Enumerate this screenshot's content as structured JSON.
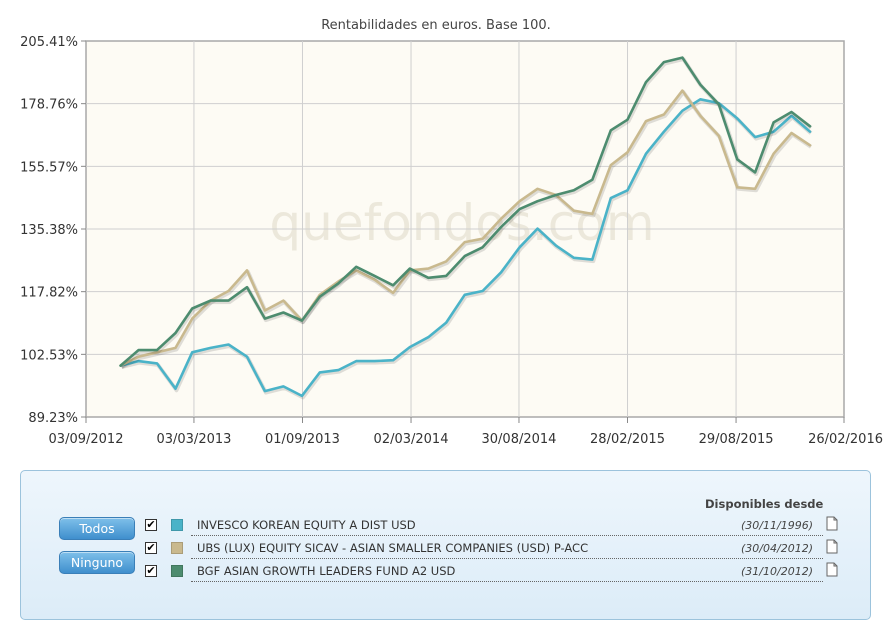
{
  "chart_data": {
    "type": "line",
    "title": "Rentabilidades en euros. Base 100.",
    "watermark": "quefondos.com",
    "y_ticks": [
      "89.23%",
      "102.53%",
      "117.82%",
      "135.38%",
      "155.57%",
      "178.76%",
      "205.41%"
    ],
    "x_ticks": [
      "03/09/2012",
      "03/03/2013",
      "01/09/2013",
      "02/03/2014",
      "30/08/2014",
      "28/02/2015",
      "29/08/2015",
      "26/02/2016"
    ],
    "y_scale": "log",
    "x_range": [
      "2012-09-03",
      "2016-02-26"
    ],
    "grid": true,
    "series": [
      {
        "name": "INVESCO KOREAN EQUITY A DIST USD",
        "color": "#4ab3c8",
        "points": [
          [
            "2012-10-31",
            100.0
          ],
          [
            "2012-11-30",
            101.0
          ],
          [
            "2012-12-31",
            100.5
          ],
          [
            "2013-01-31",
            95.0
          ],
          [
            "2013-02-28",
            103.0
          ],
          [
            "2013-03-31",
            104.0
          ],
          [
            "2013-04-30",
            104.8
          ],
          [
            "2013-05-31",
            102.0
          ],
          [
            "2013-06-30",
            94.5
          ],
          [
            "2013-07-31",
            95.5
          ],
          [
            "2013-08-31",
            93.5
          ],
          [
            "2013-09-30",
            98.5
          ],
          [
            "2013-10-31",
            99.0
          ],
          [
            "2013-11-30",
            101.0
          ],
          [
            "2013-12-31",
            101.0
          ],
          [
            "2014-01-31",
            101.2
          ],
          [
            "2014-02-28",
            104.2
          ],
          [
            "2014-03-31",
            106.5
          ],
          [
            "2014-04-30",
            110.0
          ],
          [
            "2014-05-31",
            117.0
          ],
          [
            "2014-06-30",
            118.0
          ],
          [
            "2014-07-31",
            123.0
          ],
          [
            "2014-08-31",
            130.0
          ],
          [
            "2014-09-30",
            135.5
          ],
          [
            "2014-10-31",
            130.5
          ],
          [
            "2014-11-30",
            127.0
          ],
          [
            "2014-12-31",
            126.5
          ],
          [
            "2015-01-31",
            145.0
          ],
          [
            "2015-02-28",
            147.5
          ],
          [
            "2015-03-31",
            160.0
          ],
          [
            "2015-04-30",
            168.0
          ],
          [
            "2015-05-31",
            176.0
          ],
          [
            "2015-06-30",
            180.5
          ],
          [
            "2015-07-31",
            179.0
          ],
          [
            "2015-08-31",
            173.0
          ],
          [
            "2015-09-30",
            166.0
          ],
          [
            "2015-10-31",
            168.0
          ],
          [
            "2015-11-30",
            174.0
          ],
          [
            "2015-12-31",
            168.0
          ]
        ]
      },
      {
        "name": "UBS (LUX) EQUITY SICAV - ASIAN SMALLER COMPANIES (USD) P-ACC",
        "color": "#c9b98e",
        "points": [
          [
            "2012-10-31",
            100.0
          ],
          [
            "2012-11-30",
            102.0
          ],
          [
            "2012-12-31",
            103.0
          ],
          [
            "2013-01-31",
            104.0
          ],
          [
            "2013-02-28",
            111.0
          ],
          [
            "2013-03-31",
            115.5
          ],
          [
            "2013-04-30",
            118.0
          ],
          [
            "2013-05-31",
            123.5
          ],
          [
            "2013-06-30",
            113.0
          ],
          [
            "2013-07-31",
            115.5
          ],
          [
            "2013-08-31",
            110.5
          ],
          [
            "2013-09-30",
            117.0
          ],
          [
            "2013-10-31",
            120.5
          ],
          [
            "2013-11-30",
            123.5
          ],
          [
            "2013-12-31",
            121.0
          ],
          [
            "2014-01-31",
            117.5
          ],
          [
            "2014-02-28",
            123.5
          ],
          [
            "2014-03-31",
            124.0
          ],
          [
            "2014-04-30",
            126.0
          ],
          [
            "2014-05-31",
            131.5
          ],
          [
            "2014-06-30",
            132.5
          ],
          [
            "2014-07-31",
            138.5
          ],
          [
            "2014-08-31",
            144.0
          ],
          [
            "2014-09-30",
            148.0
          ],
          [
            "2014-10-31",
            146.0
          ],
          [
            "2014-11-30",
            141.0
          ],
          [
            "2014-12-31",
            140.0
          ],
          [
            "2015-01-31",
            156.0
          ],
          [
            "2015-02-28",
            160.5
          ],
          [
            "2015-03-31",
            172.0
          ],
          [
            "2015-04-30",
            174.5
          ],
          [
            "2015-05-31",
            184.0
          ],
          [
            "2015-06-30",
            174.0
          ],
          [
            "2015-07-31",
            166.5
          ],
          [
            "2015-08-31",
            148.5
          ],
          [
            "2015-09-30",
            148.0
          ],
          [
            "2015-10-31",
            160.0
          ],
          [
            "2015-11-30",
            167.5
          ],
          [
            "2015-12-31",
            163.0
          ]
        ]
      },
      {
        "name": "BGF ASIAN GROWTH LEADERS FUND A2 USD",
        "color": "#4d8c6f",
        "points": [
          [
            "2012-10-31",
            100.0
          ],
          [
            "2012-11-30",
            103.5
          ],
          [
            "2012-12-31",
            103.5
          ],
          [
            "2013-01-31",
            107.5
          ],
          [
            "2013-02-28",
            113.5
          ],
          [
            "2013-03-31",
            115.5
          ],
          [
            "2013-04-30",
            115.5
          ],
          [
            "2013-05-31",
            119.0
          ],
          [
            "2013-06-30",
            111.0
          ],
          [
            "2013-07-31",
            112.5
          ],
          [
            "2013-08-31",
            110.5
          ],
          [
            "2013-09-30",
            116.5
          ],
          [
            "2013-10-31",
            120.0
          ],
          [
            "2013-11-30",
            124.5
          ],
          [
            "2013-12-31",
            122.0
          ],
          [
            "2014-01-31",
            119.5
          ],
          [
            "2014-02-28",
            124.0
          ],
          [
            "2014-03-31",
            121.5
          ],
          [
            "2014-04-30",
            122.0
          ],
          [
            "2014-05-31",
            127.5
          ],
          [
            "2014-06-30",
            130.0
          ],
          [
            "2014-07-31",
            136.0
          ],
          [
            "2014-08-31",
            141.5
          ],
          [
            "2014-09-30",
            144.0
          ],
          [
            "2014-10-31",
            146.0
          ],
          [
            "2014-11-30",
            147.5
          ],
          [
            "2014-12-31",
            151.0
          ],
          [
            "2015-01-31",
            168.5
          ],
          [
            "2015-02-28",
            172.5
          ],
          [
            "2015-03-31",
            187.5
          ],
          [
            "2015-04-30",
            196.0
          ],
          [
            "2015-05-31",
            198.0
          ],
          [
            "2015-06-30",
            186.5
          ],
          [
            "2015-07-31",
            178.5
          ],
          [
            "2015-08-31",
            158.0
          ],
          [
            "2015-09-30",
            153.5
          ],
          [
            "2015-10-31",
            171.5
          ],
          [
            "2015-11-30",
            175.5
          ],
          [
            "2015-12-31",
            170.0
          ]
        ]
      }
    ]
  },
  "legend": {
    "header": "Disponibles desde",
    "buttons": {
      "all": "Todos",
      "none": "Ninguno"
    },
    "rows": [
      {
        "name": "INVESCO KOREAN EQUITY A DIST USD",
        "date": "(30/11/1996)",
        "color": "#4ab3c8",
        "checked": "✔"
      },
      {
        "name": "UBS (LUX) EQUITY SICAV - ASIAN SMALLER COMPANIES (USD) P-ACC",
        "date": "(30/04/2012)",
        "color": "#c9b98e",
        "checked": "✔"
      },
      {
        "name": "BGF ASIAN GROWTH LEADERS FUND A2 USD",
        "date": "(31/10/2012)",
        "color": "#4d8c6f",
        "checked": "✔"
      }
    ]
  }
}
